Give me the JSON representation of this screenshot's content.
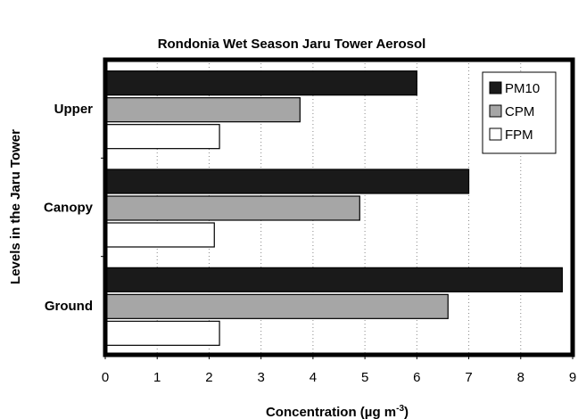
{
  "chart_data": {
    "type": "bar",
    "orientation": "horizontal",
    "title": "Rondonia Wet Season Jaru Tower Aerosol",
    "xlabel": "Concentration (µg m",
    "xlabel_sup": "-3",
    "xlabel_end": ")",
    "ylabel": "Levels in the Jaru Tower",
    "categories": [
      "Upper",
      "Canopy",
      "Ground"
    ],
    "series": [
      {
        "name": "PM10",
        "color": "#1a1a1a",
        "values": [
          6.0,
          7.0,
          8.8
        ]
      },
      {
        "name": "CPM",
        "color": "#a6a6a6",
        "values": [
          3.75,
          4.9,
          6.6
        ]
      },
      {
        "name": "FPM",
        "color": "#ffffff",
        "values": [
          2.2,
          2.1,
          2.2
        ]
      }
    ],
    "xlim": [
      0,
      9
    ],
    "xticks": [
      "0",
      "1",
      "2",
      "3",
      "4",
      "5",
      "6",
      "7",
      "8",
      "9"
    ],
    "grid": "vertical-dotted",
    "legend_position": "top-right"
  }
}
